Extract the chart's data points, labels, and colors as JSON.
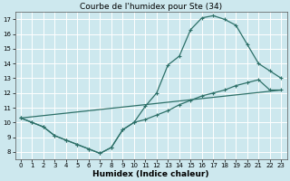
{
  "title": "Courbe de l'humidex pour Ste (34)",
  "xlabel": "Humidex (Indice chaleur)",
  "bg_color": "#cde8ee",
  "grid_color": "#ffffff",
  "line_color": "#2d7068",
  "xlim": [
    -0.5,
    23.5
  ],
  "ylim": [
    7.5,
    17.5
  ],
  "xticks": [
    0,
    1,
    2,
    3,
    4,
    5,
    6,
    7,
    8,
    9,
    10,
    11,
    12,
    13,
    14,
    15,
    16,
    17,
    18,
    19,
    20,
    21,
    22,
    23
  ],
  "yticks": [
    8,
    9,
    10,
    11,
    12,
    13,
    14,
    15,
    16,
    17
  ],
  "curve1_x": [
    0,
    1,
    2,
    3,
    4,
    5,
    6,
    7,
    8,
    9,
    10,
    11,
    12,
    13,
    14,
    15,
    16,
    17,
    18,
    19,
    20,
    21,
    22,
    23
  ],
  "curve1_y": [
    10.3,
    10.0,
    9.7,
    9.1,
    8.8,
    8.5,
    8.2,
    7.9,
    8.3,
    9.5,
    10.0,
    11.1,
    12.0,
    13.9,
    14.5,
    16.3,
    17.1,
    17.25,
    17.0,
    16.6,
    15.3,
    14.0,
    13.5,
    13.0
  ],
  "curve2_x": [
    0,
    1,
    2,
    3,
    4,
    5,
    6,
    7,
    8,
    9,
    10,
    11,
    12,
    13,
    14,
    15,
    16,
    17,
    18,
    19,
    20,
    21,
    22,
    23
  ],
  "curve2_y": [
    10.3,
    10.0,
    9.7,
    9.1,
    8.8,
    8.5,
    8.2,
    7.9,
    8.3,
    9.5,
    10.0,
    10.2,
    10.5,
    10.8,
    11.2,
    11.5,
    11.8,
    12.0,
    12.2,
    12.5,
    12.7,
    12.9,
    12.2,
    12.2
  ],
  "curve3_x": [
    0,
    23
  ],
  "curve3_y": [
    10.3,
    12.2
  ],
  "title_fontsize": 6.5,
  "xlabel_fontsize": 6.5,
  "tick_fontsize": 5.0
}
